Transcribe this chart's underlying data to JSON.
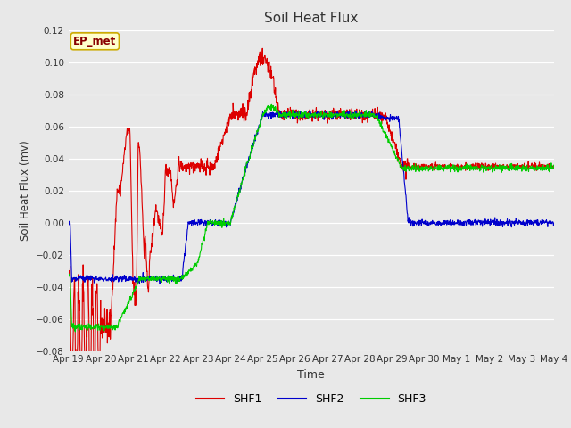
{
  "title": "Soil Heat Flux",
  "xlabel": "Time",
  "ylabel": "Soil Heat Flux (mv)",
  "ylim": [
    -0.08,
    0.12
  ],
  "bg_color": "#e8e8e8",
  "plot_bg_color": "#e8e8e8",
  "shf1_color": "#dd0000",
  "shf2_color": "#0000cc",
  "shf3_color": "#00cc00",
  "annotation_text": "EP_met",
  "annotation_bg": "#ffffcc",
  "annotation_border": "#ccaa00",
  "x_tick_labels": [
    "Apr 19",
    "Apr 20",
    "Apr 21",
    "Apr 22",
    "Apr 23",
    "Apr 24",
    "Apr 25",
    "Apr 26",
    "Apr 27",
    "Apr 28",
    "Apr 29",
    "Apr 30",
    "May 1",
    "May 2",
    "May 3",
    "May 4"
  ]
}
